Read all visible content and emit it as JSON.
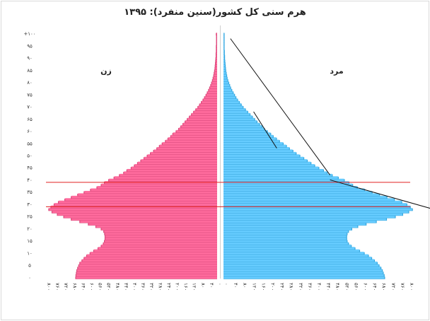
{
  "chart_data": {
    "type": "bar",
    "title": "هرم سنی کل کشور(سنین منفرد): ۱۳۹۵",
    "orientation": "horizontal-population-pyramid",
    "left_label": "زن",
    "right_label": "مرد",
    "y_ticks": [
      "۰",
      "۵",
      "۱۰",
      "۱۵",
      "۲۰",
      "۲۵",
      "۳۰",
      "۳۵",
      "۴۰",
      "۴۵",
      "۵۰",
      "۵۵",
      "۶۰",
      "۶۵",
      "۷۰",
      "۷۵",
      "۸۰",
      "۸۵",
      "۹۰",
      "۹۵",
      "+۱۰۰"
    ],
    "ylim": [
      0,
      100
    ],
    "xlim_thousands": [
      0,
      800
    ],
    "female_color": "#ff6b9d",
    "female_shadow": "#d94a7c",
    "male_color": "#66ccff",
    "male_shadow": "#3aa8de",
    "reference_line_color": "#e02020",
    "reference_ages": [
      29,
      39
    ],
    "ages": [
      0,
      1,
      2,
      3,
      4,
      5,
      6,
      7,
      8,
      9,
      10,
      11,
      12,
      13,
      14,
      15,
      16,
      17,
      18,
      19,
      20,
      21,
      22,
      23,
      24,
      25,
      26,
      27,
      28,
      29,
      30,
      31,
      32,
      33,
      34,
      35,
      36,
      37,
      38,
      39,
      40,
      41,
      42,
      43,
      44,
      45,
      46,
      47,
      48,
      49,
      50,
      51,
      52,
      53,
      54,
      55,
      56,
      57,
      58,
      59,
      60,
      61,
      62,
      63,
      64,
      65,
      66,
      67,
      68,
      69,
      70,
      71,
      72,
      73,
      74,
      75,
      76,
      77,
      78,
      79,
      80,
      81,
      82,
      83,
      84,
      85,
      86,
      87,
      88,
      89,
      90,
      91,
      92,
      93,
      94,
      95,
      96,
      97,
      98,
      99,
      100
    ],
    "female": [
      659,
      658,
      656,
      654,
      650,
      645,
      640,
      630,
      620,
      608,
      592,
      575,
      555,
      540,
      530,
      525,
      522,
      522,
      524,
      528,
      540,
      565,
      600,
      640,
      680,
      715,
      745,
      770,
      785,
      775,
      760,
      740,
      710,
      680,
      650,
      620,
      590,
      560,
      540,
      525,
      505,
      480,
      455,
      435,
      420,
      400,
      385,
      370,
      355,
      340,
      325,
      310,
      295,
      280,
      268,
      255,
      240,
      228,
      215,
      205,
      190,
      178,
      168,
      158,
      148,
      138,
      128,
      118,
      108,
      98,
      88,
      80,
      72,
      64,
      57,
      50,
      44,
      38,
      33,
      28,
      24,
      20,
      17,
      14,
      12,
      10,
      8,
      7,
      6,
      5,
      4,
      3,
      3,
      2,
      2,
      2,
      1,
      1,
      1,
      1,
      2
    ],
    "male": [
      694,
      692,
      688,
      684,
      678,
      670,
      662,
      650,
      638,
      624,
      606,
      586,
      566,
      550,
      538,
      532,
      530,
      530,
      532,
      538,
      552,
      578,
      614,
      658,
      702,
      740,
      772,
      798,
      814,
      805,
      790,
      768,
      736,
      704,
      672,
      640,
      608,
      576,
      556,
      540,
      520,
      494,
      468,
      446,
      430,
      410,
      392,
      376,
      360,
      345,
      328,
      312,
      298,
      283,
      270,
      256,
      240,
      227,
      213,
      202,
      188,
      175,
      165,
      154,
      143,
      133,
      123,
      113,
      103,
      93,
      83,
      75,
      67,
      59,
      52,
      46,
      40,
      34,
      29,
      25,
      21,
      17,
      14,
      12,
      10,
      8,
      7,
      6,
      5,
      4,
      3,
      3,
      2,
      2,
      1,
      1,
      1,
      1,
      1,
      1,
      1
    ],
    "x_tick_labels_left": [
      "۸۰۰",
      "۷۶۰",
      "۷۲۰",
      "۶۸۰",
      "۶۴۰",
      "۶۰۰",
      "۵۶۰",
      "۵۲۰",
      "۴۸۰",
      "۴۴۰",
      "۴۰۰",
      "۳۶۰",
      "۳۲۰",
      "۲۸۰",
      "۲۴۰",
      "۲۰۰",
      "۱۶۰",
      "۱۲۰",
      "۸۰",
      "۴۰",
      "۰"
    ],
    "x_tick_labels_right": [
      "۰",
      "۴۰",
      "۸۰",
      "۱۲۰",
      "۱۶۰",
      "۲۰۰",
      "۲۴۰",
      "۲۸۰",
      "۳۲۰",
      "۳۶۰",
      "۴۰۰",
      "۴۴۰",
      "۴۸۰",
      "۵۲۰",
      "۵۶۰",
      "۶۰۰",
      "۶۴۰",
      "۶۸۰",
      "۷۲۰",
      "۷۶۰",
      "۸۰۰"
    ],
    "trend_lines": [
      {
        "from_age": 98,
        "from_value": 30,
        "to_age": 42,
        "to_value": 460
      },
      {
        "from_age": 68,
        "from_value": 130,
        "to_age": 53,
        "to_value": 230
      },
      {
        "from_age": 40,
        "from_value": 460,
        "to_age": 28,
        "to_value": 905
      }
    ]
  }
}
